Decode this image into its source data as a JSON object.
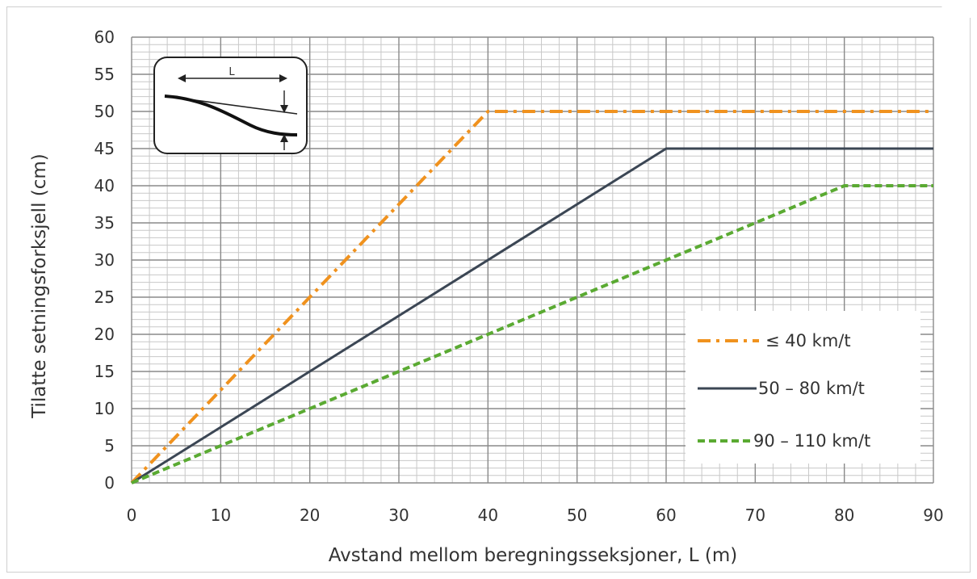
{
  "chart_data": {
    "type": "line",
    "title": "",
    "xlabel": "Avstand mellom beregningsseksjoner, L (m)",
    "ylabel": "Tilatte setningsforksjell (cm)",
    "xlim": [
      0,
      90
    ],
    "ylim": [
      0,
      60
    ],
    "x_major_ticks": [
      0,
      10,
      20,
      30,
      40,
      50,
      60,
      70,
      80,
      90
    ],
    "y_major_ticks": [
      0,
      5,
      10,
      15,
      20,
      25,
      30,
      35,
      40,
      45,
      50,
      55,
      60
    ],
    "x_minor_step": 2,
    "y_minor_step": 1,
    "grid": true,
    "legend_position": "bottom-right",
    "series": [
      {
        "name": "≤ 40 km/t",
        "color": "#f0921e",
        "dash": "dash-dot",
        "x": [
          0,
          40,
          90
        ],
        "y": [
          0,
          50,
          50
        ]
      },
      {
        "name": "50 – 80 km/t",
        "color": "#3b4654",
        "dash": "solid",
        "x": [
          0,
          60,
          90
        ],
        "y": [
          0,
          45,
          45
        ]
      },
      {
        "name": "90 – 110 km/t",
        "color": "#5aaa32",
        "dash": "dashed",
        "x": [
          0,
          80,
          90
        ],
        "y": [
          0,
          40,
          40
        ]
      }
    ],
    "inset": {
      "label": "L"
    }
  }
}
